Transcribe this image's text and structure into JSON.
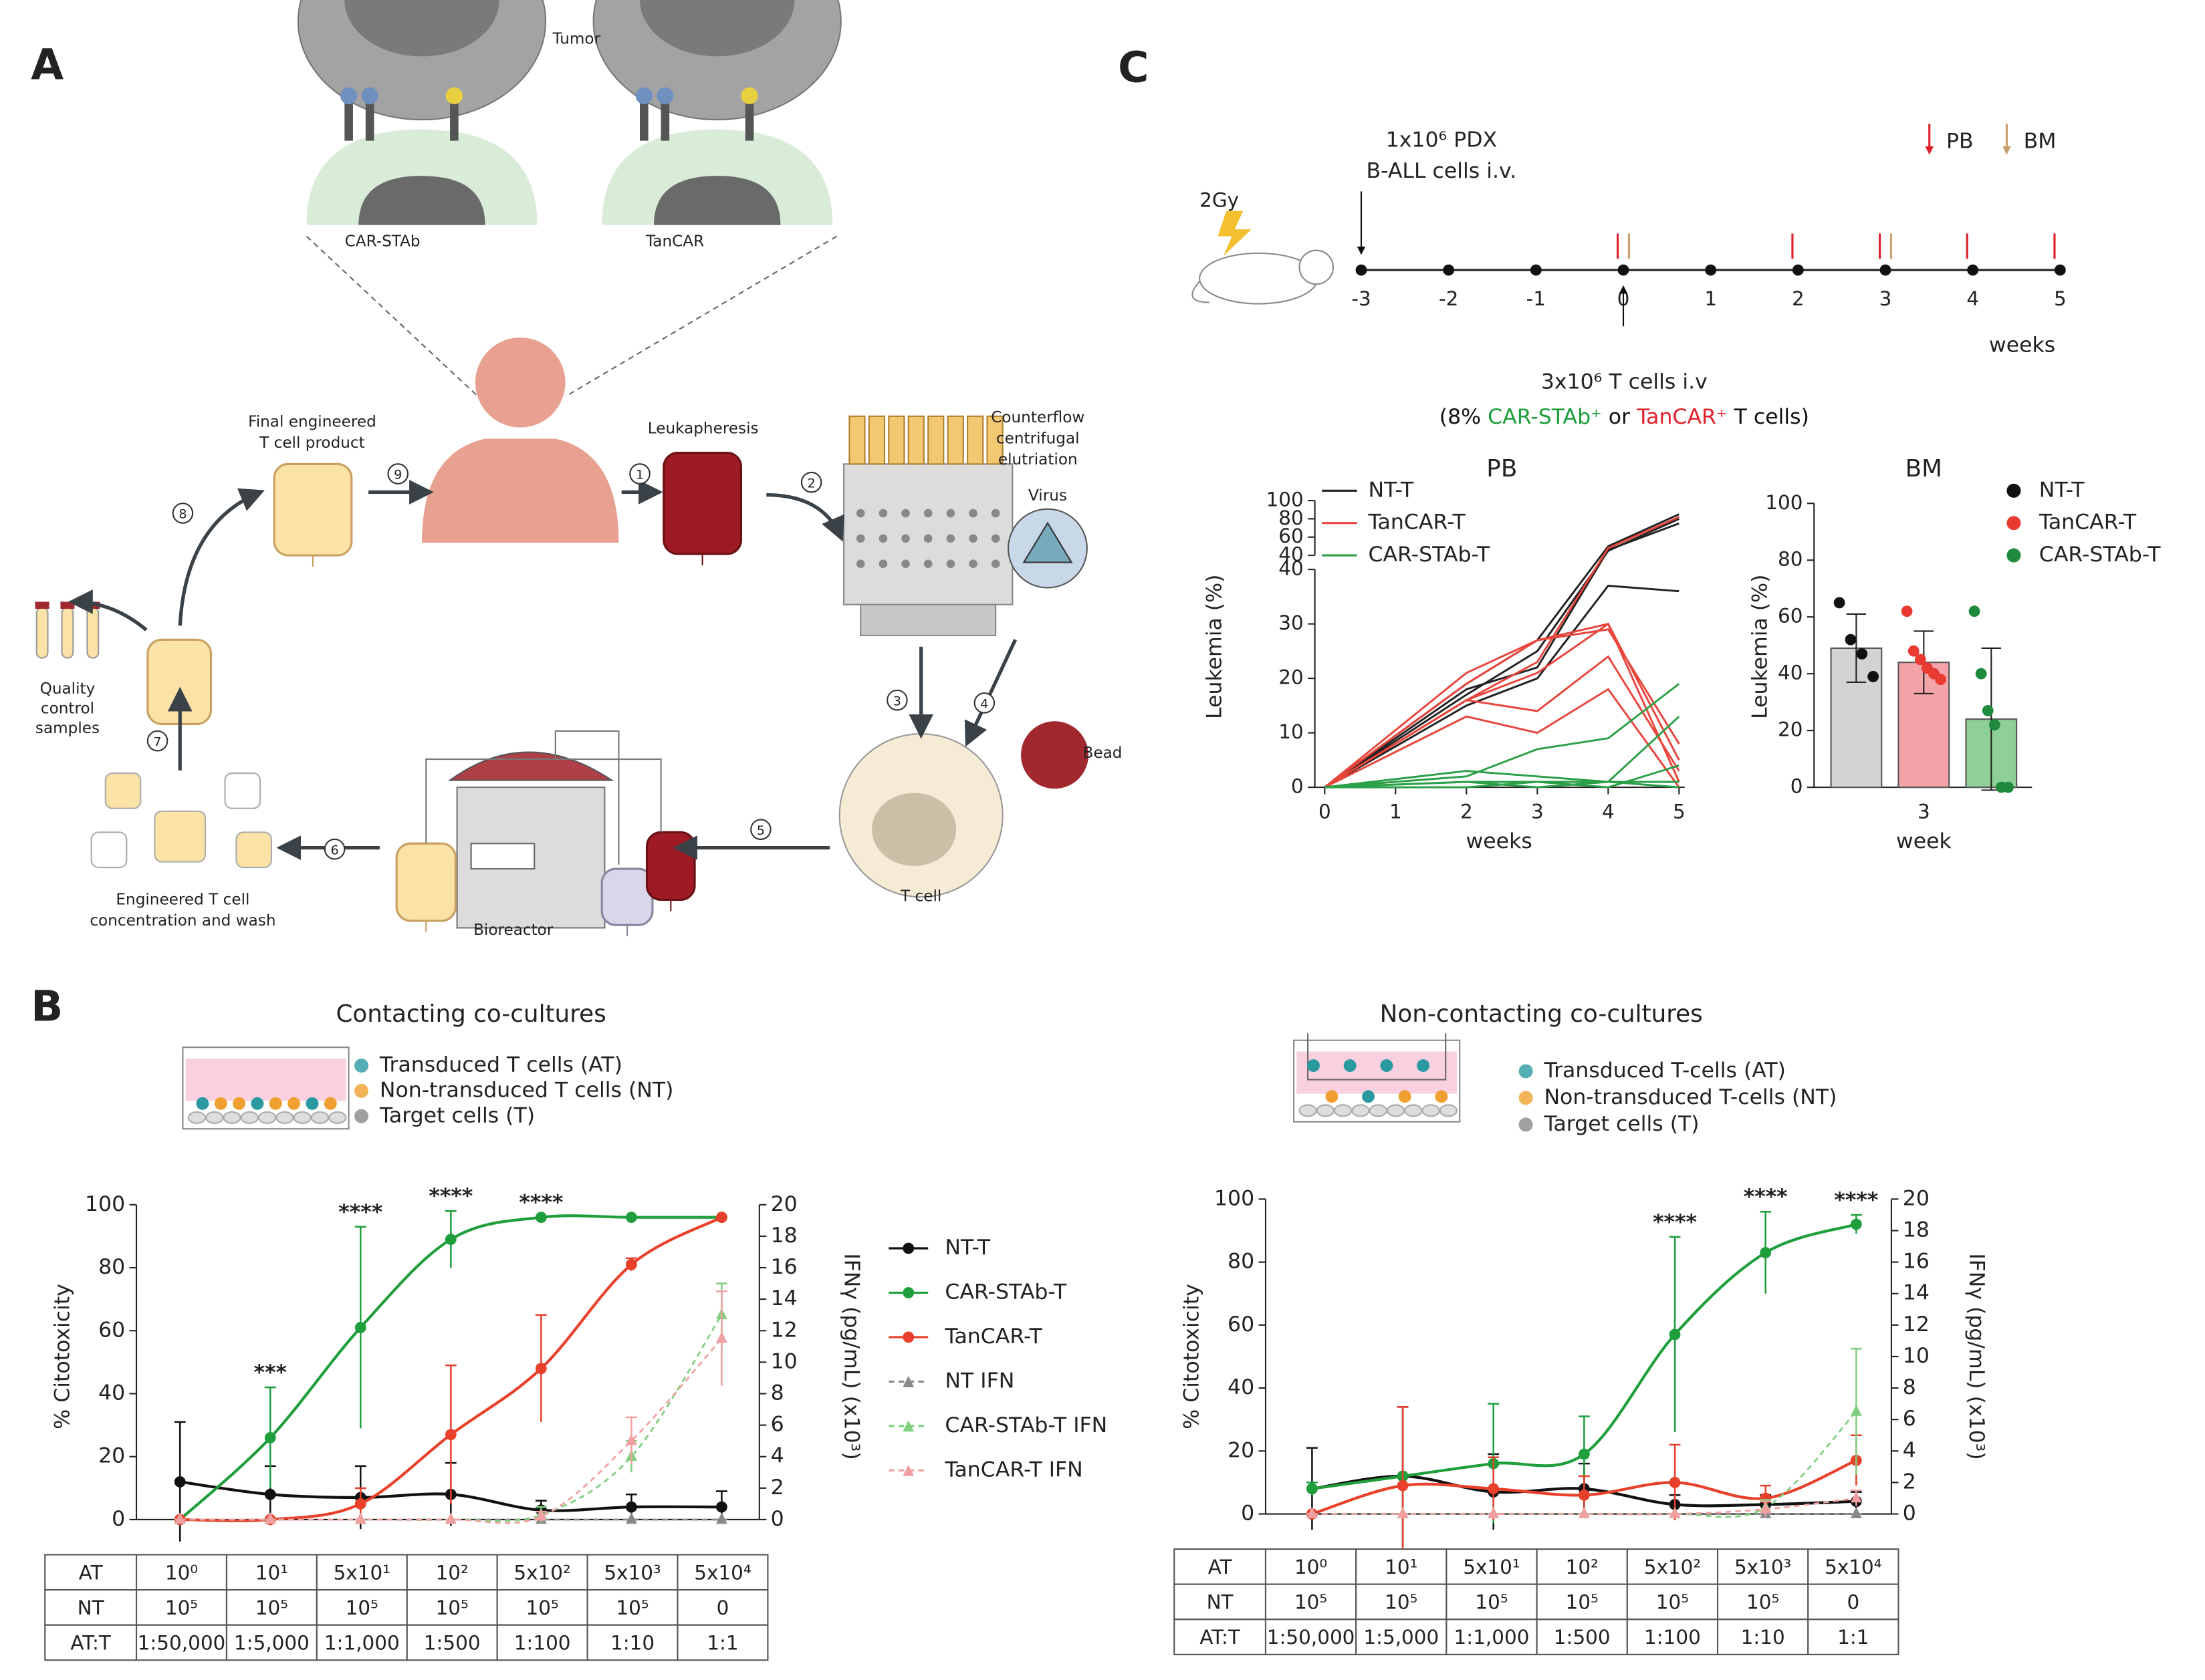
{
  "panel_labels": [
    "A",
    "B",
    "C"
  ],
  "diagram": {
    "tumor": "Tumor",
    "car_stab": "CAR-STAb",
    "tancar": "TanCAR",
    "final_product": [
      "Final engineered",
      "T cell product"
    ],
    "leukapheresis": "Leukapheresis",
    "elutriation": [
      "Counterflow",
      "centrifugal",
      "elutriation"
    ],
    "virus": "Virus",
    "bead": "Bead",
    "t_cell": "T cell",
    "bioreactor": "Bioreactor",
    "concentration": [
      "Engineered T cell",
      "concentration and wash"
    ],
    "quality": [
      "Quality",
      "control",
      "samples"
    ],
    "steps": [
      "1",
      "2",
      "3",
      "4",
      "5",
      "6",
      "7",
      "8",
      "9"
    ]
  },
  "timeline": {
    "irradiation": "2Gy",
    "injection": [
      "1x10⁶ PDX",
      "B-ALL cells i.v."
    ],
    "weeks": [
      -3,
      -2,
      -1,
      0,
      1,
      2,
      3,
      4,
      5
    ],
    "unit": "weeks",
    "tcells": "3x10⁶ T cells i.v",
    "tcells_detail": [
      {
        "text": "(8% ",
        "color": "#111111"
      },
      {
        "text": "CAR-STAb⁺",
        "color": "#1a9e3a"
      },
      {
        "text": " or ",
        "color": "#111111"
      },
      {
        "text": "TanCAR⁺",
        "color": "#e0202a"
      },
      {
        "text": " T cells)",
        "color": "#111111"
      }
    ],
    "sampling": [
      {
        "name": "PB",
        "color": "#e0202a",
        "weeks": [
          0,
          2,
          3,
          4,
          5
        ]
      },
      {
        "name": "BM",
        "color": "#c8a070",
        "weeks": [
          0,
          3
        ]
      }
    ]
  },
  "cocultures": [
    {
      "title": "Contacting co-cultures",
      "cells": [
        {
          "text": "Transduced T cells (AT)",
          "color": "#2a9aa0"
        },
        {
          "text": "Non-transduced T cells (NT)",
          "color": "#f0a030"
        },
        {
          "text": "Target cells (T)",
          "color": "#888888"
        }
      ]
    },
    {
      "title": "Non-contacting co-cultures",
      "cells": [
        {
          "text": "Transduced T-cells (AT)",
          "color": "#2a9aa0"
        },
        {
          "text": "Non-transduced T-cells (NT)",
          "color": "#f0a030"
        },
        {
          "text": "Target cells (T)",
          "color": "#888888"
        }
      ]
    }
  ],
  "legend_b": [
    {
      "name": "NT-T",
      "color": "#111111",
      "marker": "circle",
      "dash": false
    },
    {
      "name": "CAR-STAb-T",
      "color": "#1f9e3c",
      "marker": "circle",
      "dash": false
    },
    {
      "name": "TanCAR-T",
      "color": "#e8402a",
      "marker": "circle",
      "dash": false
    },
    {
      "name": "NT IFN",
      "color": "#888888",
      "marker": "triangle",
      "dash": true
    },
    {
      "name": "CAR-STAb-T IFN",
      "color": "#7fcf7f",
      "marker": "triangle",
      "dash": true
    },
    {
      "name": "TanCAR-T IFN",
      "color": "#f0a0a0",
      "marker": "triangle",
      "dash": true
    }
  ],
  "chart_data": [
    {
      "type": "line",
      "title": "PB",
      "x_label": "weeks",
      "y_label": "Leukemia (%)",
      "x": [
        0,
        2,
        3,
        4,
        5
      ],
      "xlim": [
        0,
        5
      ],
      "xticks": [
        0,
        1,
        2,
        3,
        4,
        5
      ],
      "ylim": [
        0,
        40
      ],
      "yticks": [
        0,
        10,
        20,
        30,
        40
      ],
      "ylim_upper": [
        40,
        100
      ],
      "yticks_upper": [
        40,
        60,
        80,
        100
      ],
      "series": [
        {
          "name": "NT-T",
          "color": "#222222",
          "values": [
            [
              0,
              19,
              27,
              50,
              85
            ],
            [
              0,
              17,
              25,
              45,
              80
            ],
            [
              0,
              15,
              20,
              37,
              36
            ],
            [
              0,
              18,
              22,
              46,
              75
            ]
          ]
        },
        {
          "name": "TanCAR-T",
          "color": "#e8453c",
          "values": [
            [
              0,
              21,
              27,
              30,
              1
            ],
            [
              0,
              19,
              27,
              29,
              8
            ],
            [
              0,
              16,
              21,
              30,
              5
            ],
            [
              0,
              16,
              14,
              24,
              3
            ],
            [
              0,
              13,
              10,
              18,
              0
            ],
            [
              0,
              16,
              23,
              48,
              82
            ]
          ]
        },
        {
          "name": "CAR-STAb-T",
          "color": "#2ca048",
          "values": [
            [
              0,
              2,
              7,
              9,
              19
            ],
            [
              0,
              3,
              2,
              1,
              0
            ],
            [
              0,
              1,
              1,
              0,
              4
            ],
            [
              0,
              1,
              0,
              1,
              1
            ],
            [
              0,
              0,
              1,
              1,
              13
            ]
          ]
        }
      ]
    },
    {
      "type": "bar",
      "title": "BM",
      "x_label": "week",
      "categories": [
        "3"
      ],
      "y_label": "Leukemia (%)",
      "ylim": [
        0,
        100
      ],
      "yticks": [
        0,
        20,
        40,
        60,
        80,
        100
      ],
      "series": [
        {
          "name": "NT-T",
          "color": "#111111",
          "bar_color": "#d3d3d3",
          "values": [
            49
          ],
          "errors": [
            12
          ],
          "points": [
            [
              65,
              52,
              47,
              39
            ]
          ]
        },
        {
          "name": "TanCAR-T",
          "color": "#e83a30",
          "bar_color": "#f4a4a8",
          "values": [
            44
          ],
          "errors": [
            11
          ],
          "points": [
            [
              62,
              48,
              45,
              42,
              40,
              38
            ]
          ]
        },
        {
          "name": "CAR-STAb-T",
          "color": "#1f8a3c",
          "bar_color": "#8fcf98",
          "values": [
            24
          ],
          "errors": [
            25
          ],
          "points": [
            [
              62,
              40,
              27,
              22,
              0,
              0
            ]
          ]
        }
      ]
    },
    {
      "type": "dose-response",
      "y_label": "% Citotoxicity",
      "y2_label": "IFNγ (pg/mL) (x10³)",
      "ylim": [
        0,
        100
      ],
      "yticks": [
        0,
        20,
        40,
        60,
        80,
        100
      ],
      "y2lim": [
        0,
        20
      ],
      "y2ticks": [
        0,
        2,
        4,
        6,
        8,
        10,
        12,
        14,
        16,
        18,
        20
      ],
      "series": [
        {
          "values": [
            12,
            8,
            7,
            8,
            3,
            4,
            4
          ],
          "errors": [
            19,
            9,
            10,
            10,
            3,
            4,
            5
          ]
        },
        {
          "values": [
            0,
            26,
            61,
            89,
            96,
            96,
            96
          ],
          "errors": [
            0,
            16,
            32,
            9,
            0,
            0,
            0
          ]
        },
        {
          "values": [
            0,
            0,
            5,
            27,
            48,
            81,
            96
          ],
          "errors": [
            0,
            0,
            5,
            22,
            17,
            2,
            0
          ]
        },
        {
          "values": [
            0,
            0,
            0,
            0,
            0,
            0,
            0
          ],
          "errors": [
            0,
            0,
            0,
            0,
            0,
            0,
            0
          ],
          "axis": "y2"
        },
        {
          "values": [
            0,
            0,
            0,
            0,
            0.3,
            4,
            13
          ],
          "errors": [
            0,
            0,
            0,
            0,
            0.5,
            1,
            2
          ],
          "axis": "y2"
        },
        {
          "values": [
            0,
            0,
            0,
            0,
            0.2,
            5,
            11.5
          ],
          "errors": [
            0,
            0,
            0,
            0,
            0.3,
            1.5,
            3
          ],
          "axis": "y2"
        }
      ],
      "annotations": [
        {
          "index": 1,
          "text": "***"
        },
        {
          "index": 2,
          "text": "****"
        },
        {
          "index": 3,
          "text": "****"
        },
        {
          "index": 4,
          "text": "****"
        }
      ]
    },
    {
      "type": "dose-response",
      "y_label": "% Citotoxicity",
      "y2_label": "IFNγ (pg/mL) (x10³)",
      "ylim": [
        0,
        100
      ],
      "yticks": [
        0,
        20,
        40,
        60,
        80,
        100
      ],
      "y2lim": [
        0,
        20
      ],
      "y2ticks": [
        0,
        2,
        4,
        6,
        8,
        10,
        12,
        14,
        16,
        18,
        20
      ],
      "series": [
        {
          "values": [
            8,
            12,
            7,
            8,
            3,
            3,
            4
          ],
          "errors": [
            13,
            22,
            12,
            8,
            3,
            3,
            3
          ]
        },
        {
          "values": [
            8,
            12,
            16,
            19,
            57,
            83,
            92
          ],
          "errors": [
            2,
            0,
            19,
            12,
            31,
            13,
            3
          ]
        },
        {
          "values": [
            0,
            9,
            8,
            6,
            10,
            5,
            17
          ],
          "errors": [
            0,
            25,
            10,
            6,
            12,
            4,
            8
          ]
        },
        {
          "values": [
            0,
            0,
            0,
            0,
            0,
            0,
            0
          ],
          "errors": [
            0,
            0,
            0,
            0,
            0,
            0,
            0
          ],
          "axis": "y2"
        },
        {
          "values": [
            0,
            0,
            0,
            0,
            0,
            0.4,
            6.5
          ],
          "errors": [
            0,
            0,
            0,
            0,
            0,
            0.5,
            4
          ],
          "axis": "y2"
        },
        {
          "values": [
            0,
            0,
            0,
            0,
            0,
            0.3,
            1
          ],
          "errors": [
            0,
            0,
            0,
            0,
            0,
            0.5,
            0.5
          ],
          "axis": "y2"
        }
      ],
      "annotations": [
        {
          "index": 4,
          "text": "****"
        },
        {
          "index": 5,
          "text": "****"
        },
        {
          "index": 6,
          "text": "****"
        }
      ]
    }
  ],
  "tables": [
    {
      "rows": [
        [
          "AT",
          "10⁰",
          "10¹",
          "5x10¹",
          "10²",
          "5x10²",
          "5x10³",
          "5x10⁴"
        ],
        [
          "NT",
          "10⁵",
          "10⁵",
          "10⁵",
          "10⁵",
          "10⁵",
          "10⁵",
          "0"
        ],
        [
          "AT:T",
          "1:50,000",
          "1:5,000",
          "1:1,000",
          "1:500",
          "1:100",
          "1:10",
          "1:1"
        ]
      ]
    },
    {
      "rows": [
        [
          "AT",
          "10⁰",
          "10¹",
          "5x10¹",
          "10²",
          "5x10²",
          "5x10³",
          "5x10⁴"
        ],
        [
          "NT",
          "10⁵",
          "10⁵",
          "10⁵",
          "10⁵",
          "10⁵",
          "10⁵",
          "0"
        ],
        [
          "AT:T",
          "1:50,000",
          "1:5,000",
          "1:1,000",
          "1:500",
          "1:100",
          "1:10",
          "1:1"
        ]
      ]
    }
  ]
}
